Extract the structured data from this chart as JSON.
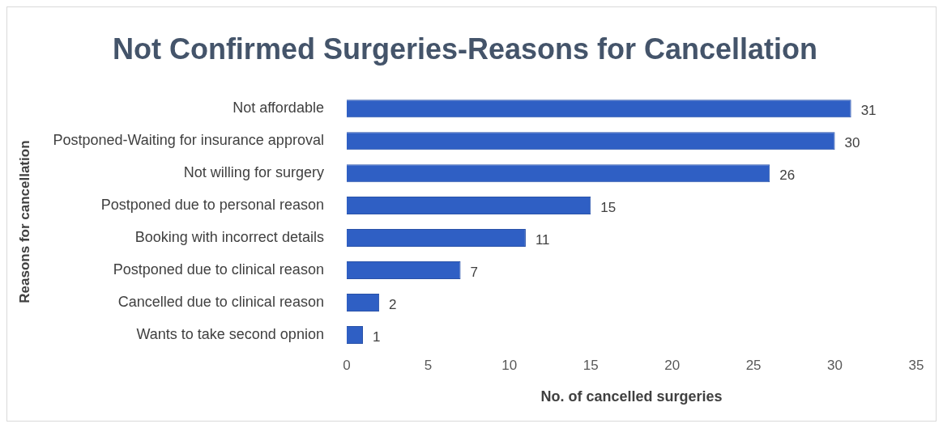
{
  "chart_data": {
    "type": "bar",
    "orientation": "horizontal",
    "title": "Not Confirmed Surgeries-Reasons for Cancellation",
    "xlabel": "No. of cancelled surgeries",
    "ylabel": "Reasons for cancellation",
    "categories": [
      "Not affordable",
      "Postponed-Waiting for insurance approval",
      "Not willing for surgery",
      "Postponed due to personal reason",
      "Booking with incorrect details",
      "Postponed due to clinical reason",
      "Cancelled due to clinical reason",
      "Wants to take second opnion"
    ],
    "values": [
      31,
      30,
      26,
      15,
      11,
      7,
      2,
      1
    ],
    "color": "#2f5fc4",
    "xlim": [
      0,
      35
    ],
    "xticks": [
      0,
      5,
      10,
      15,
      20,
      25,
      30,
      35
    ],
    "grid": false,
    "legend": false,
    "data_labels": true
  }
}
